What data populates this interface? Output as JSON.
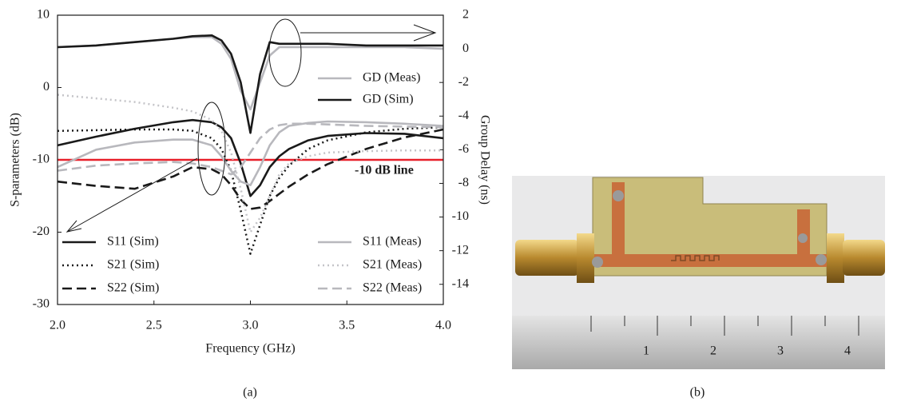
{
  "chart_data": {
    "type": "line",
    "x_label": "Frequency (GHz)",
    "y_label": "S-parameters (dB)",
    "y2_label": "Group Delay (ns)",
    "x": [
      2.0,
      2.2,
      2.4,
      2.6,
      2.7,
      2.8,
      2.85,
      2.9,
      2.95,
      3.0,
      3.05,
      3.1,
      3.15,
      3.2,
      3.3,
      3.4,
      3.6,
      3.8,
      4.0
    ],
    "xlim": [
      2,
      4
    ],
    "xticks": [
      {
        "value": 2,
        "label": "2.0"
      },
      {
        "value": 2.5,
        "label": "2.5"
      },
      {
        "value": 3,
        "label": "3.0"
      },
      {
        "value": 3.5,
        "label": "3.5"
      },
      {
        "value": 4,
        "label": "4.0"
      }
    ],
    "ylim": [
      -30,
      10
    ],
    "yticks": [
      -30,
      -20,
      -10,
      0,
      10
    ],
    "y2lim": [
      -15.2,
      2
    ],
    "y2ticks": [
      -14,
      -12,
      -10,
      -8,
      -6,
      -4,
      -2,
      0,
      2
    ],
    "series": [
      {
        "name": "S11 (Sim)",
        "color": "#1a1a1a",
        "dash": "solid",
        "values": [
          -8,
          -6.8,
          -5.7,
          -4.8,
          -4.5,
          -4.8,
          -5.5,
          -7,
          -10.5,
          -15,
          -13.5,
          -11,
          -9.5,
          -8.5,
          -7.3,
          -6.7,
          -6.3,
          -6.4,
          -7
        ]
      },
      {
        "name": "S21 (Sim)",
        "color": "#1a1a1a",
        "dash": "dotted",
        "values": [
          -6,
          -5.9,
          -5.8,
          -5.8,
          -6,
          -7,
          -8.5,
          -11.5,
          -17,
          -23,
          -19,
          -15,
          -12.5,
          -10.8,
          -8.5,
          -7.3,
          -6.2,
          -5.7,
          -5.5
        ]
      },
      {
        "name": "S22 (Sim)",
        "color": "#1a1a1a",
        "dash": "dashed",
        "values": [
          -13,
          -13.6,
          -14,
          -12.3,
          -11,
          -11.3,
          -12,
          -13.5,
          -15.5,
          -16.8,
          -16.6,
          -15.7,
          -14.7,
          -13.7,
          -12,
          -10.6,
          -8.5,
          -6.9,
          -5.8
        ]
      },
      {
        "name": "S11 (Meas)",
        "color": "#b8b8bd",
        "dash": "solid",
        "values": [
          -11,
          -8.6,
          -7.6,
          -7.2,
          -7.2,
          -8,
          -9.5,
          -11.5,
          -13,
          -13.5,
          -11,
          -8,
          -6.2,
          -5.3,
          -4.9,
          -4.7,
          -4.8,
          -5,
          -5.3
        ]
      },
      {
        "name": "S21 (Meas)",
        "color": "#c4c4c8",
        "dash": "dotted",
        "values": [
          -1,
          -1.5,
          -2,
          -2.8,
          -3.3,
          -4.5,
          -6,
          -9,
          -14,
          -20,
          -18,
          -15,
          -12,
          -10.5,
          -9.5,
          -9,
          -8.8,
          -8.7,
          -8.7
        ]
      },
      {
        "name": "S22 (Meas)",
        "color": "#b8b8bd",
        "dash": "dashed",
        "values": [
          -11.5,
          -10.8,
          -10.5,
          -10.3,
          -10.5,
          -11,
          -11.5,
          -12,
          -11,
          -9,
          -7,
          -5.8,
          -5.2,
          -5,
          -5,
          -5.1,
          -5.3,
          -5.4,
          -5.5
        ]
      },
      {
        "name": "GD (Meas)",
        "color": "#b8b8bd",
        "dash": "solid",
        "axis": "y2",
        "values": [
          0.1,
          0.2,
          0.4,
          0.6,
          0.7,
          0.7,
          0.3,
          -0.6,
          -2.5,
          -3.6,
          -2,
          -0.4,
          0.1,
          0.1,
          0.1,
          0.1,
          0.1,
          0.1,
          0
        ]
      },
      {
        "name": "GD (Sim)",
        "color": "#1a1a1a",
        "dash": "solid",
        "axis": "y2",
        "values": [
          0.1,
          0.2,
          0.4,
          0.6,
          0.75,
          0.8,
          0.5,
          -0.3,
          -2,
          -5,
          -1.5,
          0.4,
          0.3,
          0.3,
          0.3,
          0.3,
          0.2,
          0.2,
          0.2
        ]
      }
    ],
    "reference_line": {
      "value": -10,
      "label": "-10 dB line",
      "color": "#e8202a"
    }
  },
  "captions": [
    "(a)",
    "(b)"
  ],
  "photo": {
    "ruler_labels": [
      "1",
      "2",
      "3",
      "4"
    ]
  }
}
